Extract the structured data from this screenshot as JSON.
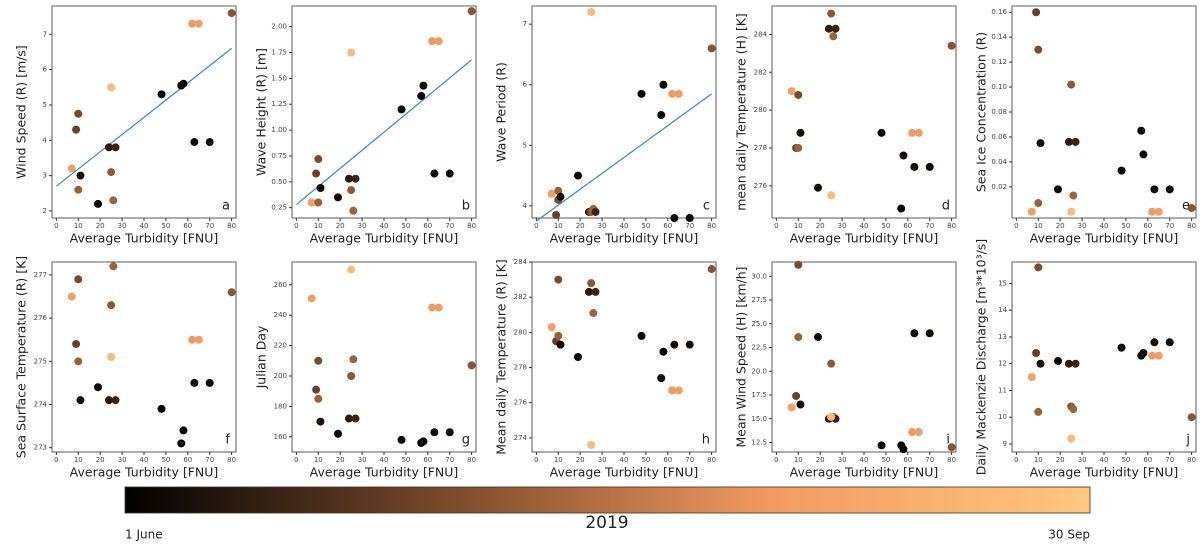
{
  "chart_data": [
    {
      "type": "scatter",
      "letter": "a",
      "xlabel": "Average Turbidity [FNU]",
      "ylabel": "Wind Speed (R) [m/s]",
      "x": [
        7,
        9,
        10,
        10,
        11,
        19,
        24,
        25,
        26,
        27,
        25,
        48,
        57,
        58,
        62,
        65,
        63,
        70,
        80
      ],
      "y": [
        3.2,
        4.3,
        4.75,
        2.6,
        3.0,
        2.2,
        3.8,
        3.1,
        2.3,
        3.8,
        5.5,
        5.3,
        5.55,
        5.6,
        7.3,
        7.3,
        3.95,
        3.95,
        7.6
      ],
      "colors": [
        "#f0a060",
        "#6b3f25",
        "#7a4a2a",
        "#9a6038",
        "#150d08",
        "#0a0604",
        "#2a1a10",
        "#8a5834",
        "#9b653c",
        "#3b2416",
        "#f8bb78",
        "#000000",
        "#050302",
        "#080504",
        "#ee9a62",
        "#f09c64",
        "#100a06",
        "#0d0805",
        "#8c5432"
      ],
      "fit": {
        "x": [
          0,
          80
        ],
        "y": [
          2.7,
          6.6
        ],
        "color": "#3a86c0"
      },
      "xlim": [
        -2,
        82
      ],
      "xticks": [
        0,
        10,
        20,
        30,
        40,
        50,
        60,
        70,
        80
      ],
      "ylim": [
        1.8,
        7.8
      ],
      "yticks": [
        2,
        3,
        4,
        5,
        6,
        7
      ]
    },
    {
      "type": "scatter",
      "letter": "b",
      "xlabel": "Average Turbidity [FNU]",
      "ylabel": "Wave Height (R) [m]",
      "x": [
        7,
        9,
        10,
        10,
        11,
        19,
        24,
        25,
        26,
        27,
        25,
        48,
        57,
        58,
        62,
        65,
        63,
        70,
        80
      ],
      "y": [
        0.3,
        0.58,
        0.72,
        0.3,
        0.44,
        0.35,
        0.53,
        0.42,
        0.22,
        0.53,
        1.75,
        1.2,
        1.33,
        1.43,
        1.86,
        1.86,
        0.58,
        0.58,
        2.15
      ],
      "colors": [
        "#f0a060",
        "#6b3f25",
        "#7a4a2a",
        "#9a6038",
        "#150d08",
        "#0a0604",
        "#2a1a10",
        "#8a5834",
        "#9b653c",
        "#3b2416",
        "#f8bb78",
        "#000000",
        "#050302",
        "#080504",
        "#ee9a62",
        "#f09c64",
        "#100a06",
        "#0d0805",
        "#8c5432"
      ],
      "fit": {
        "x": [
          0,
          80
        ],
        "y": [
          0.28,
          1.68
        ],
        "color": "#3a86c0"
      },
      "xlim": [
        -2,
        82
      ],
      "xticks": [
        0,
        10,
        20,
        30,
        40,
        50,
        60,
        70,
        80
      ],
      "ylim": [
        0.15,
        2.2
      ],
      "yticks": [
        {
          "value": 0.25,
          "label": "0.25"
        },
        {
          "value": 0.5,
          "label": "0.50"
        },
        {
          "value": 0.75,
          "label": "0.75"
        },
        {
          "value": 1,
          "label": "1.00"
        },
        {
          "value": 1.25,
          "label": "1.25"
        },
        {
          "value": 1.5,
          "label": "1.50"
        },
        {
          "value": 1.75,
          "label": "1.75"
        },
        {
          "value": 2,
          "label": "2.00"
        }
      ]
    },
    {
      "type": "scatter",
      "letter": "c",
      "xlabel": "Average Turbidity [FNU]",
      "ylabel": "Wave Period (R)",
      "x": [
        7,
        9,
        10,
        10,
        11,
        19,
        24,
        25,
        26,
        27,
        25,
        48,
        57,
        58,
        62,
        65,
        63,
        70,
        80
      ],
      "y": [
        4.2,
        3.85,
        4.1,
        4.25,
        4.15,
        4.5,
        3.9,
        3.9,
        3.95,
        3.9,
        7.2,
        5.85,
        5.5,
        6.0,
        5.85,
        5.85,
        3.8,
        3.8,
        6.6
      ],
      "colors": [
        "#f0a060",
        "#6b3f25",
        "#7a4a2a",
        "#9a6038",
        "#150d08",
        "#0a0604",
        "#2a1a10",
        "#8a5834",
        "#9b653c",
        "#3b2416",
        "#f8bb78",
        "#000000",
        "#050302",
        "#080504",
        "#ee9a62",
        "#f09c64",
        "#100a06",
        "#0d0805",
        "#8c5432"
      ],
      "fit": {
        "x": [
          0,
          80
        ],
        "y": [
          3.75,
          5.85
        ],
        "color": "#3a86c0"
      },
      "xlim": [
        -2,
        82
      ],
      "xticks": [
        0,
        10,
        20,
        30,
        40,
        50,
        60,
        70,
        80
      ],
      "ylim": [
        3.8,
        7.3
      ],
      "yticks": [
        4,
        5,
        6,
        7
      ]
    },
    {
      "type": "scatter",
      "letter": "d",
      "xlabel": "Average Turbidity [FNU]",
      "ylabel": "mean daily Temperature (H) [K]",
      "x": [
        7,
        9,
        10,
        10,
        11,
        19,
        24,
        25,
        26,
        27,
        25,
        48,
        57,
        58,
        62,
        65,
        63,
        70,
        80
      ],
      "y": [
        281,
        278,
        280.8,
        278,
        278.8,
        275.9,
        284.3,
        285.1,
        283.9,
        284.3,
        275.5,
        278.8,
        274.8,
        277.6,
        278.8,
        278.8,
        277,
        277,
        283.4
      ],
      "colors": [
        "#f0a060",
        "#6b3f25",
        "#7a4a2a",
        "#9a6038",
        "#150d08",
        "#0a0604",
        "#2a1a10",
        "#8a5834",
        "#9b653c",
        "#3b2416",
        "#f8bb78",
        "#000000",
        "#050302",
        "#080504",
        "#ee9a62",
        "#f09c64",
        "#100a06",
        "#0d0805",
        "#8c5432"
      ],
      "xlim": [
        -2,
        82
      ],
      "xticks": [
        0,
        10,
        20,
        30,
        40,
        50,
        60,
        70,
        80
      ],
      "ylim": [
        274.3,
        285.5
      ],
      "yticks": [
        276,
        278,
        280,
        282,
        284
      ]
    },
    {
      "type": "scatter",
      "letter": "e",
      "xlabel": "Average Turbidity [FNU]",
      "ylabel": "Sea Ice Concentration (R)",
      "x": [
        7,
        9,
        10,
        10,
        11,
        19,
        24,
        25,
        26,
        27,
        25,
        48,
        57,
        58,
        62,
        65,
        63,
        70,
        80
      ],
      "y": [
        0.0,
        0.16,
        0.13,
        0.007,
        0.055,
        0.018,
        0.056,
        0.102,
        0.013,
        0.056,
        0.0,
        0.033,
        0.065,
        0.046,
        0.0,
        0.0,
        0.018,
        0.018,
        0.003
      ],
      "colors": [
        "#f0a060",
        "#6b3f25",
        "#7a4a2a",
        "#9a6038",
        "#150d08",
        "#0a0604",
        "#2a1a10",
        "#8a5834",
        "#9b653c",
        "#3b2416",
        "#f8bb78",
        "#000000",
        "#050302",
        "#080504",
        "#ee9a62",
        "#f09c64",
        "#100a06",
        "#0d0805",
        "#8c5432"
      ],
      "xlim": [
        -2,
        82
      ],
      "xticks": [
        0,
        10,
        20,
        30,
        40,
        50,
        60,
        70,
        80
      ],
      "ylim": [
        -0.005,
        0.165
      ],
      "yticks": [
        0.02,
        0.04,
        0.06,
        0.08,
        {
          "value": 0.1,
          "label": "0.10"
        },
        0.12,
        0.14,
        0.16
      ]
    },
    {
      "type": "scatter",
      "letter": "f",
      "xlabel": "Average Turbidity [FNU]",
      "ylabel": "Sea Surface Temperature (R) [K]",
      "x": [
        7,
        9,
        10,
        10,
        11,
        19,
        24,
        25,
        26,
        27,
        25,
        48,
        57,
        58,
        62,
        65,
        63,
        70,
        80
      ],
      "y": [
        276.5,
        275.4,
        276.9,
        275.0,
        274.1,
        274.4,
        274.1,
        276.3,
        277.2,
        274.1,
        275.1,
        273.9,
        273.1,
        273.4,
        275.5,
        275.5,
        274.5,
        274.5,
        276.6
      ],
      "colors": [
        "#f0a060",
        "#6b3f25",
        "#7a4a2a",
        "#9a6038",
        "#150d08",
        "#0a0604",
        "#2a1a10",
        "#8a5834",
        "#9b653c",
        "#3b2416",
        "#f8bb78",
        "#000000",
        "#050302",
        "#080504",
        "#ee9a62",
        "#f09c64",
        "#100a06",
        "#0d0805",
        "#8c5432"
      ],
      "xlim": [
        -2,
        82
      ],
      "xticks": [
        0,
        10,
        20,
        30,
        40,
        50,
        60,
        70,
        80
      ],
      "ylim": [
        272.9,
        277.3
      ],
      "yticks": [
        273,
        274,
        275,
        276,
        277
      ]
    },
    {
      "type": "scatter",
      "letter": "g",
      "xlabel": "Average Turbidity [FNU]",
      "ylabel": "Julian Day",
      "x": [
        7,
        9,
        10,
        10,
        11,
        19,
        24,
        25,
        26,
        27,
        25,
        48,
        57,
        58,
        62,
        65,
        63,
        70,
        80
      ],
      "y": [
        251,
        191,
        210,
        185,
        170,
        162,
        172,
        200,
        211,
        172,
        270,
        158,
        156,
        157,
        245,
        245,
        163,
        163,
        207
      ],
      "colors": [
        "#f0a060",
        "#6b3f25",
        "#7a4a2a",
        "#9a6038",
        "#150d08",
        "#0a0604",
        "#2a1a10",
        "#8a5834",
        "#9b653c",
        "#3b2416",
        "#f8bb78",
        "#000000",
        "#050302",
        "#080504",
        "#ee9a62",
        "#f09c64",
        "#100a06",
        "#0d0805",
        "#8c5432"
      ],
      "xlim": [
        -2,
        82
      ],
      "xticks": [
        0,
        10,
        20,
        30,
        40,
        50,
        60,
        70,
        80
      ],
      "ylim": [
        150,
        275
      ],
      "yticks": [
        160,
        180,
        200,
        220,
        240,
        260
      ]
    },
    {
      "type": "scatter",
      "letter": "h",
      "xlabel": "Average Turbidity [FNU]",
      "ylabel": "Mean daily Temperature (R) [K]",
      "x": [
        7,
        9,
        10,
        10,
        11,
        19,
        24,
        25,
        26,
        27,
        25,
        48,
        57,
        58,
        62,
        65,
        63,
        70,
        80
      ],
      "y": [
        280.3,
        279.5,
        283,
        279.8,
        279.3,
        278.6,
        282.3,
        282.8,
        281.1,
        282.3,
        273.6,
        279.8,
        277.4,
        278.9,
        276.7,
        276.7,
        279.3,
        279.3,
        283.6
      ],
      "colors": [
        "#f0a060",
        "#6b3f25",
        "#7a4a2a",
        "#9a6038",
        "#150d08",
        "#0a0604",
        "#2a1a10",
        "#8a5834",
        "#9b653c",
        "#3b2416",
        "#f8bb78",
        "#000000",
        "#050302",
        "#080504",
        "#ee9a62",
        "#f09c64",
        "#100a06",
        "#0d0805",
        "#8c5432"
      ],
      "xlim": [
        -2,
        82
      ],
      "xticks": [
        0,
        10,
        20,
        30,
        40,
        50,
        60,
        70,
        80
      ],
      "ylim": [
        273.2,
        284
      ],
      "yticks": [
        274,
        276,
        278,
        280,
        282,
        284
      ]
    },
    {
      "type": "scatter",
      "letter": "i",
      "xlabel": "Average Turbidity [FNU]",
      "ylabel": "Mean Wind Speed (H) [km/h]",
      "x": [
        7,
        9,
        10,
        10,
        11,
        19,
        24,
        25,
        26,
        27,
        25,
        48,
        57,
        58,
        62,
        65,
        63,
        70,
        80
      ],
      "y": [
        16.2,
        17.4,
        31.2,
        23.6,
        16.5,
        23.6,
        15.0,
        20.8,
        15.2,
        15.0,
        15.2,
        12.2,
        12.2,
        11.8,
        13.6,
        13.6,
        24,
        24,
        12
      ],
      "colors": [
        "#f0a060",
        "#6b3f25",
        "#7a4a2a",
        "#9a6038",
        "#150d08",
        "#0a0604",
        "#2a1a10",
        "#8a5834",
        "#9b653c",
        "#3b2416",
        "#f8bb78",
        "#000000",
        "#050302",
        "#080504",
        "#ee9a62",
        "#f09c64",
        "#100a06",
        "#0d0805",
        "#8c5432"
      ],
      "xlim": [
        -2,
        82
      ],
      "xticks": [
        0,
        10,
        20,
        30,
        40,
        50,
        60,
        70,
        80
      ],
      "ylim": [
        11.5,
        31.5
      ],
      "yticks": [
        12.5,
        {
          "value": 15,
          "label": "15.0"
        },
        17.5,
        {
          "value": 20,
          "label": "20.0"
        },
        22.5,
        {
          "value": 25,
          "label": "25.0"
        },
        27.5,
        {
          "value": 30,
          "label": "30.0"
        }
      ]
    },
    {
      "type": "scatter",
      "letter": "j",
      "xlabel": "Average Turbidity [FNU]",
      "ylabel": "Daily Mackenzie Discharge [m³*10³/s]",
      "x": [
        7,
        9,
        10,
        10,
        11,
        19,
        24,
        25,
        26,
        27,
        25,
        48,
        57,
        58,
        62,
        65,
        63,
        70,
        80
      ],
      "y": [
        11.5,
        12.4,
        15.6,
        10.2,
        12.0,
        12.1,
        12.0,
        10.4,
        10.3,
        12.0,
        9.2,
        12.6,
        12.3,
        12.4,
        12.3,
        12.3,
        12.8,
        12.8,
        10
      ],
      "colors": [
        "#f0a060",
        "#6b3f25",
        "#7a4a2a",
        "#9a6038",
        "#150d08",
        "#0a0604",
        "#2a1a10",
        "#8a5834",
        "#9b653c",
        "#3b2416",
        "#f8bb78",
        "#000000",
        "#050302",
        "#080504",
        "#ee9a62",
        "#f09c64",
        "#100a06",
        "#0d0805",
        "#8c5432"
      ],
      "xlim": [
        -2,
        82
      ],
      "xticks": [
        0,
        10,
        20,
        30,
        40,
        50,
        60,
        70,
        80
      ],
      "ylim": [
        8.7,
        15.8
      ],
      "yticks": [
        9,
        10,
        11,
        12,
        13,
        14,
        15
      ]
    }
  ],
  "colorbar": {
    "label": "2019",
    "start": "1 June",
    "end": "30 Sep",
    "colors": [
      "#000000",
      "#7a4a2a",
      "#f29a60",
      "#ffc77f"
    ]
  }
}
